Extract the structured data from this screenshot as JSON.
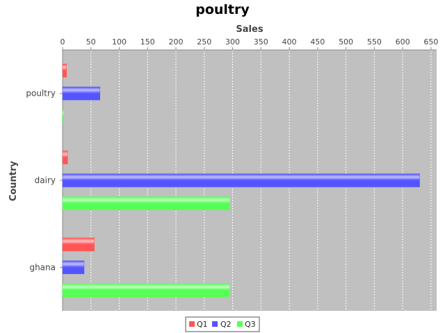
{
  "chart_data": {
    "type": "bar",
    "orientation": "horizontal",
    "title": "poultry",
    "xlabel": "Sales",
    "ylabel": "Country",
    "categories": [
      "poultry",
      "dairy",
      "ghana"
    ],
    "series": [
      {
        "name": "Q1",
        "values": [
          7,
          9,
          56
        ],
        "color": "#ff5555"
      },
      {
        "name": "Q2",
        "values": [
          66,
          630,
          38
        ],
        "color": "#5555ff"
      },
      {
        "name": "Q3",
        "values": [
          2,
          295,
          295
        ],
        "color": "#55ff55"
      }
    ],
    "xlim": [
      0,
      660
    ],
    "xticks": [
      0,
      50,
      100,
      150,
      200,
      250,
      300,
      350,
      400,
      450,
      500,
      550,
      600,
      650
    ],
    "x_axis_position": "top",
    "grid": true,
    "legend_position": "bottom",
    "plot_background": "#c0c0c0"
  }
}
